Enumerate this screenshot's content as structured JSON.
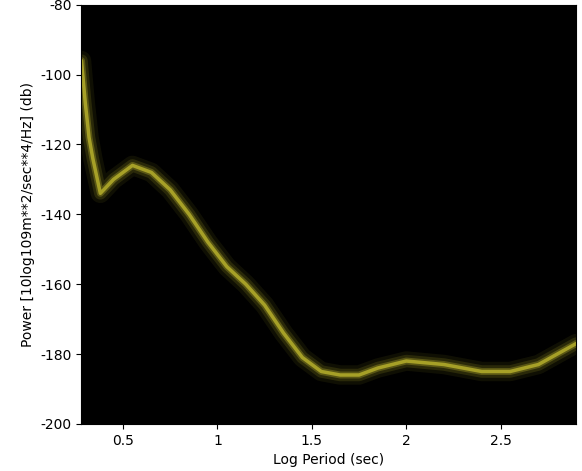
{
  "chart_data": {
    "type": "line",
    "x_label": "Log Period (sec)",
    "y_label": "Power [10log109m**2/sec**4/Hz] (db)",
    "x": [
      0.28,
      0.3,
      0.32,
      0.34,
      0.38,
      0.45,
      0.55,
      0.65,
      0.75,
      0.85,
      0.95,
      1.05,
      1.15,
      1.25,
      1.35,
      1.45,
      1.55,
      1.65,
      1.75,
      1.85,
      2.0,
      2.2,
      2.4,
      2.55,
      2.7,
      2.8,
      2.9
    ],
    "values": [
      -96,
      -108,
      -118,
      -124,
      -134,
      -130,
      -126,
      -128,
      -133,
      -140,
      -148,
      -155,
      -160,
      -166,
      -174,
      -181,
      -185,
      -186,
      -186,
      -184,
      -182,
      -183,
      -185,
      -185,
      -183,
      -180,
      -177
    ],
    "color": "#c8c030",
    "xlim": [
      0.28,
      2.9
    ],
    "ylim": [
      -200,
      -80
    ],
    "xticks": [
      0.5,
      1,
      1.5,
      2,
      2.5
    ],
    "yticks": [
      -200,
      -180,
      -160,
      -140,
      -120,
      -100,
      -80
    ],
    "grid": false
  }
}
